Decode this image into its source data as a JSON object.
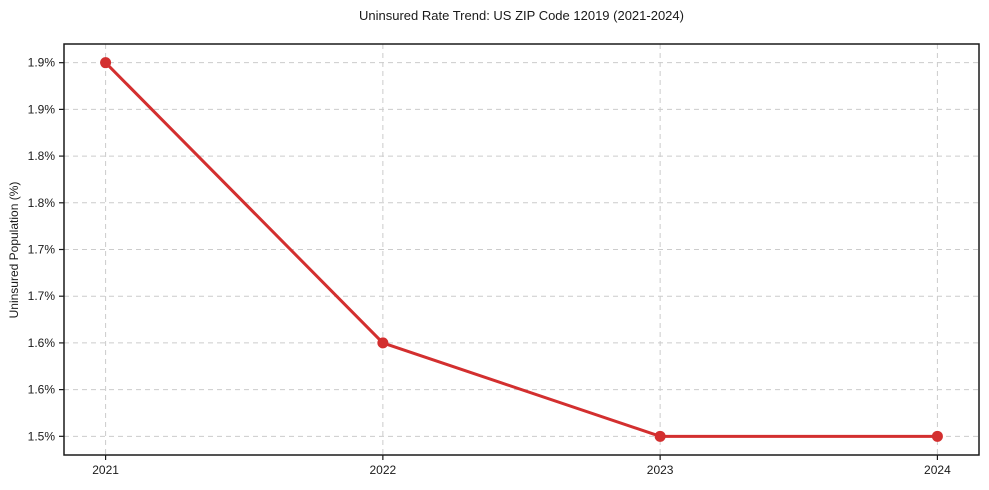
{
  "chart_data": {
    "type": "line",
    "title": "Uninsured Rate Trend: US ZIP Code 12019 (2021-2024)",
    "xlabel": "",
    "ylabel": "Uninsured Population (%)",
    "x": [
      2021,
      2022,
      2023,
      2024
    ],
    "xtick_labels": [
      "2021",
      "2022",
      "2023",
      "2024"
    ],
    "values": [
      1.9,
      1.6,
      1.5,
      1.5
    ],
    "yticks": [
      1.5,
      1.55,
      1.6,
      1.65,
      1.7,
      1.75,
      1.8,
      1.85,
      1.9
    ],
    "ytick_labels": [
      "1.5%",
      "1.6%",
      "1.6%",
      "1.7%",
      "1.7%",
      "1.8%",
      "1.8%",
      "1.9%",
      "1.9%"
    ],
    "xlim": [
      2020.85,
      2024.15
    ],
    "ylim": [
      1.48,
      1.92
    ],
    "grid": true,
    "grid_style": "dashed",
    "legend": "none",
    "line_color": "#d32f2f",
    "marker": "circle",
    "marker_color": "#d32f2f",
    "grid_color": "#cccccc",
    "spine_color": "#1a1a1a",
    "text_color": "#1a1a1a",
    "background": "#ffffff"
  }
}
